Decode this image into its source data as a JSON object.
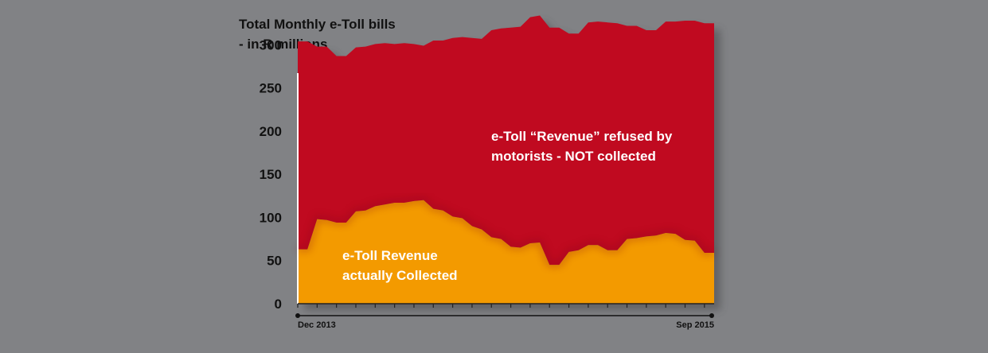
{
  "chart_data": {
    "type": "area",
    "title": "Total Monthly e-Toll bills",
    "subtitle": "- in R millions",
    "stacked": true,
    "x_start_label": "Dec 2013",
    "x_end_label": "Sep 2015",
    "ylim": [
      0,
      340
    ],
    "yticks": [
      0,
      50,
      100,
      150,
      200,
      250,
      300
    ],
    "grid": false,
    "points_per_month": 2,
    "series": [
      {
        "name": "e-Toll Revenue actually Collected",
        "label_lines": [
          "e-Toll Revenue",
          "actually Collected"
        ],
        "color": "#f39a00",
        "values": [
          63,
          63,
          98,
          97,
          94,
          94,
          107,
          108,
          113,
          115,
          117,
          117,
          119,
          120,
          110,
          108,
          101,
          99,
          90,
          86,
          77,
          75,
          66,
          65,
          70,
          71,
          45,
          45,
          60,
          62,
          68,
          68,
          62,
          62,
          75,
          76,
          78,
          79,
          82,
          81,
          74,
          73,
          59,
          59
        ]
      },
      {
        "name": "e-Toll “Revenue” refused by motorists - NOT collected",
        "label_lines": [
          "e-Toll “Revenue” refused by",
          "motorists - NOT collected"
        ],
        "color": "#c00a20",
        "values": [
          241,
          241,
          200,
          201,
          193,
          193,
          190,
          190,
          188,
          187,
          184,
          185,
          182,
          179,
          195,
          197,
          207,
          210,
          218,
          221,
          240,
          244,
          254,
          256,
          262,
          263,
          275,
          275,
          253,
          251,
          258,
          259,
          264,
          263,
          247,
          246,
          239,
          238,
          245,
          246,
          254,
          255,
          266,
          266
        ]
      }
    ]
  }
}
